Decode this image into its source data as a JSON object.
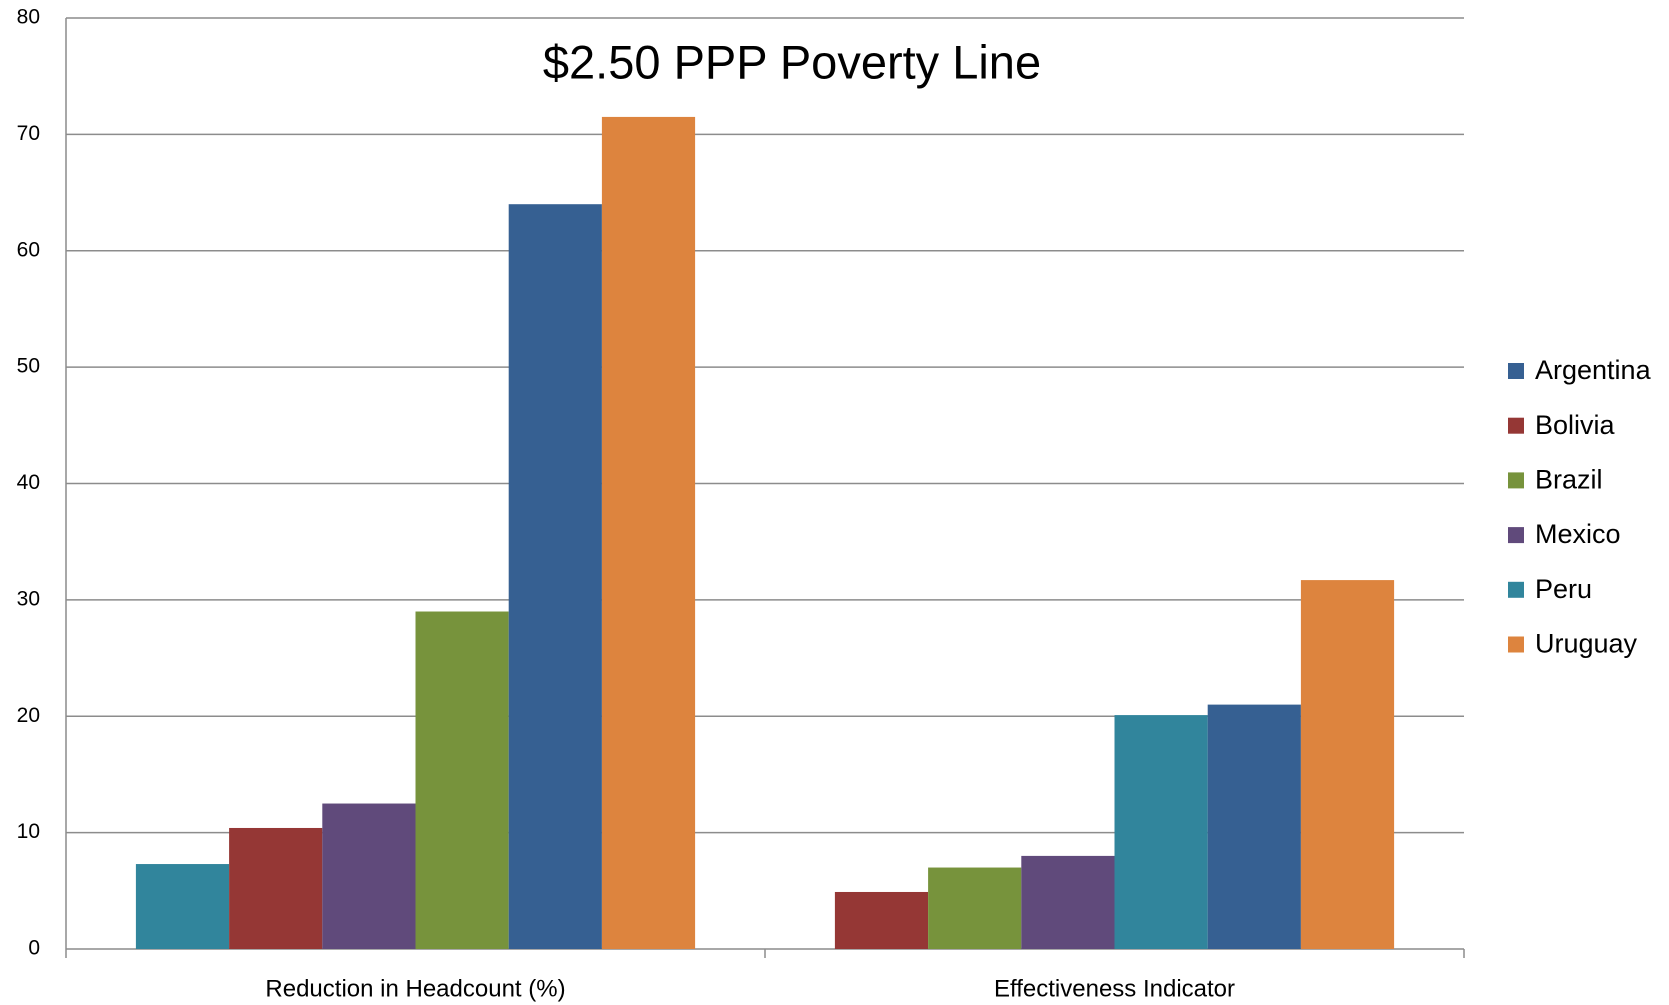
{
  "chart_data": {
    "type": "bar",
    "title": "$2.50 PPP Poverty Line",
    "categories": [
      "Reduction in Headcount (%)",
      "Effectiveness Indicator"
    ],
    "series": [
      {
        "name": "Argentina",
        "color": "#366092",
        "values": [
          64,
          21
        ]
      },
      {
        "name": "Bolivia",
        "color": "#953735",
        "values": [
          10.4,
          4.9
        ]
      },
      {
        "name": "Brazil",
        "color": "#77933c",
        "values": [
          29,
          7
        ]
      },
      {
        "name": "Mexico",
        "color": "#604a7b",
        "values": [
          12.5,
          8
        ]
      },
      {
        "name": "Peru",
        "color": "#31859c",
        "values": [
          7.3,
          20.1
        ]
      },
      {
        "name": "Uruguay",
        "color": "#dd843e",
        "values": [
          71.5,
          31.7
        ]
      }
    ],
    "ylim": [
      0,
      80
    ],
    "yticks": [
      0,
      10,
      20,
      30,
      40,
      50,
      60,
      70,
      80
    ],
    "grid": true,
    "legend": "right"
  }
}
